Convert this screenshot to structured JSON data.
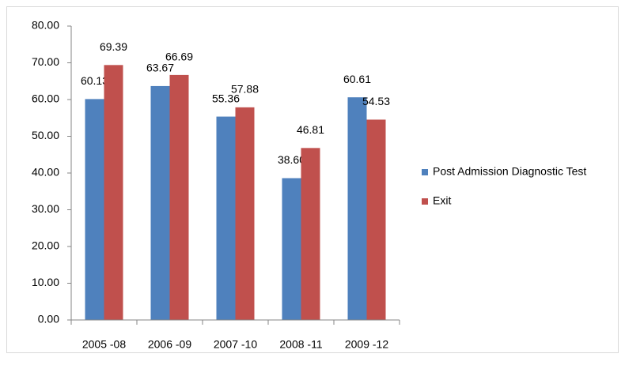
{
  "chart_data": {
    "type": "bar",
    "categories": [
      "2005 -08",
      "2006 -09",
      "2007 -10",
      "2008 -11",
      "2009 -12"
    ],
    "series": [
      {
        "name": "Post Admission Diagnostic Test",
        "color": "#4f81bd",
        "values": [
          60.13,
          63.67,
          55.36,
          38.6,
          60.61
        ],
        "value_labels": [
          "60.13",
          "63.67",
          "55.36",
          "38.60",
          "60.61"
        ]
      },
      {
        "name": "Exit",
        "color": "#c0504d",
        "values": [
          69.39,
          66.69,
          57.88,
          46.81,
          54.53
        ],
        "value_labels": [
          "69.39",
          "66.69",
          "57.88",
          "46.81",
          "54.53"
        ]
      }
    ],
    "ylim": [
      0,
      80
    ],
    "yticks": [
      {
        "value": 0,
        "label": "0.00"
      },
      {
        "value": 10,
        "label": "10.00"
      },
      {
        "value": 20,
        "label": "20.00"
      },
      {
        "value": 30,
        "label": "30.00"
      },
      {
        "value": 40,
        "label": "40.00"
      },
      {
        "value": 50,
        "label": "50.00"
      },
      {
        "value": 60,
        "label": "60.00"
      },
      {
        "value": 70,
        "label": "70.00"
      },
      {
        "value": 80,
        "label": "80.00"
      }
    ],
    "grid": false,
    "legend": "right"
  }
}
